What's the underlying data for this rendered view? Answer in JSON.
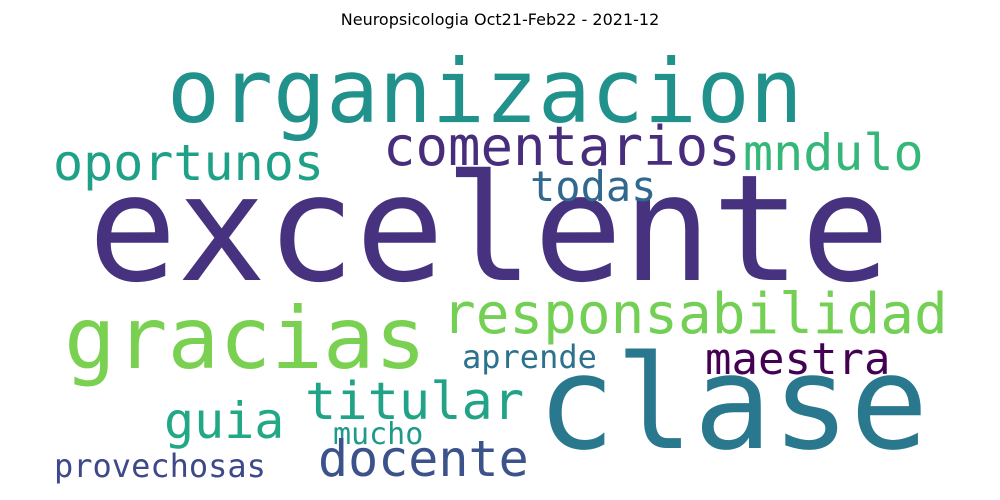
{
  "title": "Neuropsicologia Oct21-Feb22 - 2021-12",
  "words": [
    {
      "id": "excelente",
      "text": "excelente",
      "color": "#46327e"
    },
    {
      "id": "organizacion",
      "text": "organizacion",
      "color": "#21918c"
    },
    {
      "id": "clase",
      "text": "clase",
      "color": "#2a788e"
    },
    {
      "id": "gracias",
      "text": "gracias",
      "color": "#7ad151"
    },
    {
      "id": "comentarios",
      "text": "comentarios",
      "color": "#472d7b"
    },
    {
      "id": "oportunos",
      "text": "oportunos",
      "color": "#1fa187"
    },
    {
      "id": "mndulo",
      "text": "mndulo",
      "color": "#35b779"
    },
    {
      "id": "todas",
      "text": "todas",
      "color": "#31688e"
    },
    {
      "id": "responsabilidad",
      "text": "responsabilidad",
      "color": "#73d055"
    },
    {
      "id": "maestra",
      "text": "maestra",
      "color": "#440154"
    },
    {
      "id": "aprende",
      "text": "aprende",
      "color": "#2c728e"
    },
    {
      "id": "titular",
      "text": "titular",
      "color": "#20a386"
    },
    {
      "id": "guia",
      "text": "guia",
      "color": "#22a884"
    },
    {
      "id": "mucho",
      "text": "mucho",
      "color": "#1f9a8a"
    },
    {
      "id": "docente",
      "text": "docente",
      "color": "#3b528b"
    },
    {
      "id": "provechosas",
      "text": "provechosas",
      "color": "#3e4989"
    }
  ]
}
